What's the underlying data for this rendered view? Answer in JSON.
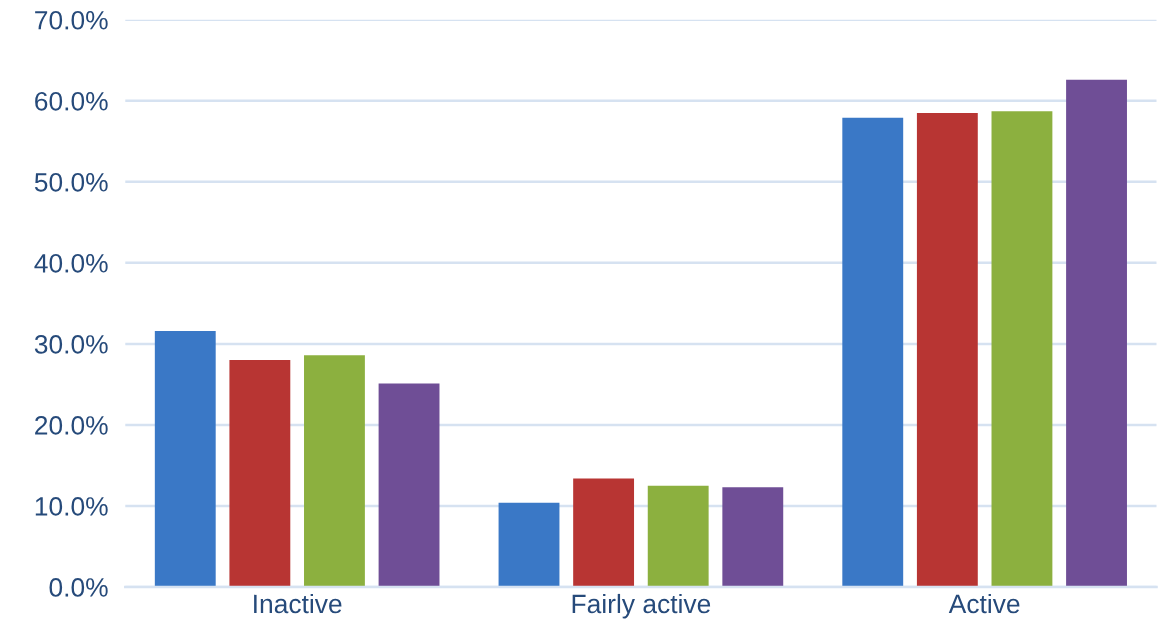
{
  "chart_data": {
    "type": "bar",
    "categories": [
      "Inactive",
      "Fairly active",
      "Active"
    ],
    "series": [
      {
        "color": "#3a78c6",
        "values": [
          31.6,
          10.4,
          57.9
        ]
      },
      {
        "color": "#b83533",
        "values": [
          28.0,
          13.4,
          58.5
        ]
      },
      {
        "color": "#8cb03f",
        "values": [
          28.6,
          12.5,
          58.7
        ]
      },
      {
        "color": "#6f4e96",
        "values": [
          25.1,
          12.3,
          62.6
        ]
      }
    ],
    "ylim": [
      0,
      70
    ],
    "yticks": [
      {
        "value": 0,
        "label": "0.0%"
      },
      {
        "value": 10,
        "label": "10.0%"
      },
      {
        "value": 20,
        "label": "20.0%"
      },
      {
        "value": 30,
        "label": "30.0%"
      },
      {
        "value": 40,
        "label": "40.0%"
      },
      {
        "value": 50,
        "label": "50.0%"
      },
      {
        "value": 60,
        "label": "60.0%"
      },
      {
        "value": 70,
        "label": "70.0%"
      }
    ],
    "grid": "y"
  }
}
